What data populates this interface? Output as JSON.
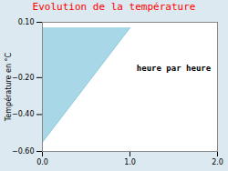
{
  "chart_data": {
    "type": "area",
    "title": "Evolution de la température",
    "ylabel": "Température en °C",
    "xlim": [
      0,
      2
    ],
    "ylim": [
      -0.6,
      0.1
    ],
    "xticks": [
      0,
      1,
      2
    ],
    "yticks": [
      0.1,
      -0.2,
      -0.4,
      -0.6
    ],
    "grid": true,
    "series": [
      {
        "type": "area",
        "x": [
          0,
          0,
          1
        ],
        "values": [
          -0.55,
          0.07,
          0.07
        ],
        "color": "#a8d8e8"
      },
      {
        "type": "line",
        "x": [
          0,
          1
        ],
        "values": [
          -0.55,
          0.07
        ],
        "color": "#88c8dc"
      }
    ],
    "annotations": [
      {
        "text": "heure par heure",
        "x": 1.5,
        "y": -0.15
      }
    ]
  }
}
